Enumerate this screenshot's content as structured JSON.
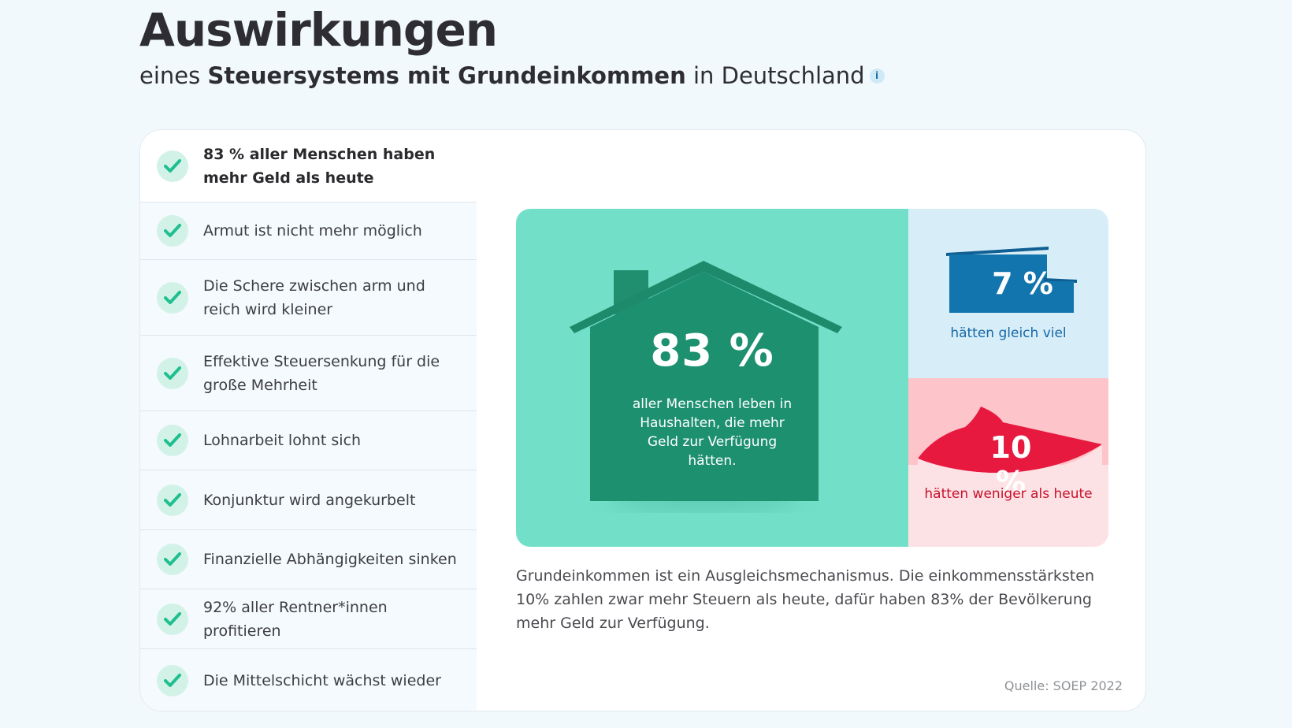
{
  "header": {
    "title": "Auswirkungen",
    "subtitle_pre": "eines ",
    "subtitle_bold": "Steuersystems mit Grundeinkommen",
    "subtitle_post": " in Deutschland",
    "info_icon_glyph": "i"
  },
  "benefits": [
    {
      "label": "83 % aller Menschen haben mehr Geld als heute"
    },
    {
      "label": "Armut ist nicht mehr möglich"
    },
    {
      "label": "Die Schere zwischen arm und reich wird kleiner"
    },
    {
      "label": "Effektive Steuersenkung für die große Mehrheit"
    },
    {
      "label": "Lohnarbeit lohnt sich"
    },
    {
      "label": "Konjunktur wird angekurbelt"
    },
    {
      "label": "Finanzielle Abhängigkeiten sinken"
    },
    {
      "label": "92% aller Rentner*innen profitieren"
    },
    {
      "label": "Die Mittelschicht wächst wieder"
    }
  ],
  "graphic": {
    "more": {
      "value": "83 %",
      "caption": "aller Menschen leben in Haushalten, die mehr Geld zur Verfügung hätten."
    },
    "same": {
      "value": "7 %",
      "caption": "hätten gleich viel"
    },
    "less": {
      "value": "10 %",
      "caption": "hätten weniger als heute"
    }
  },
  "explanation": "Grundeinkommen ist ein Ausgleichsmechanismus. Die einkommensstärksten 10% zahlen zwar mehr Steuern als heute, dafür haben 83% der Bevölkerung mehr Geld zur Verfügung.",
  "source": "Quelle: SOEP 2022",
  "colors": {
    "more": "#72e0c9",
    "same": "#1668a6",
    "less": "#c8112b",
    "check": "#1fbf8f"
  }
}
